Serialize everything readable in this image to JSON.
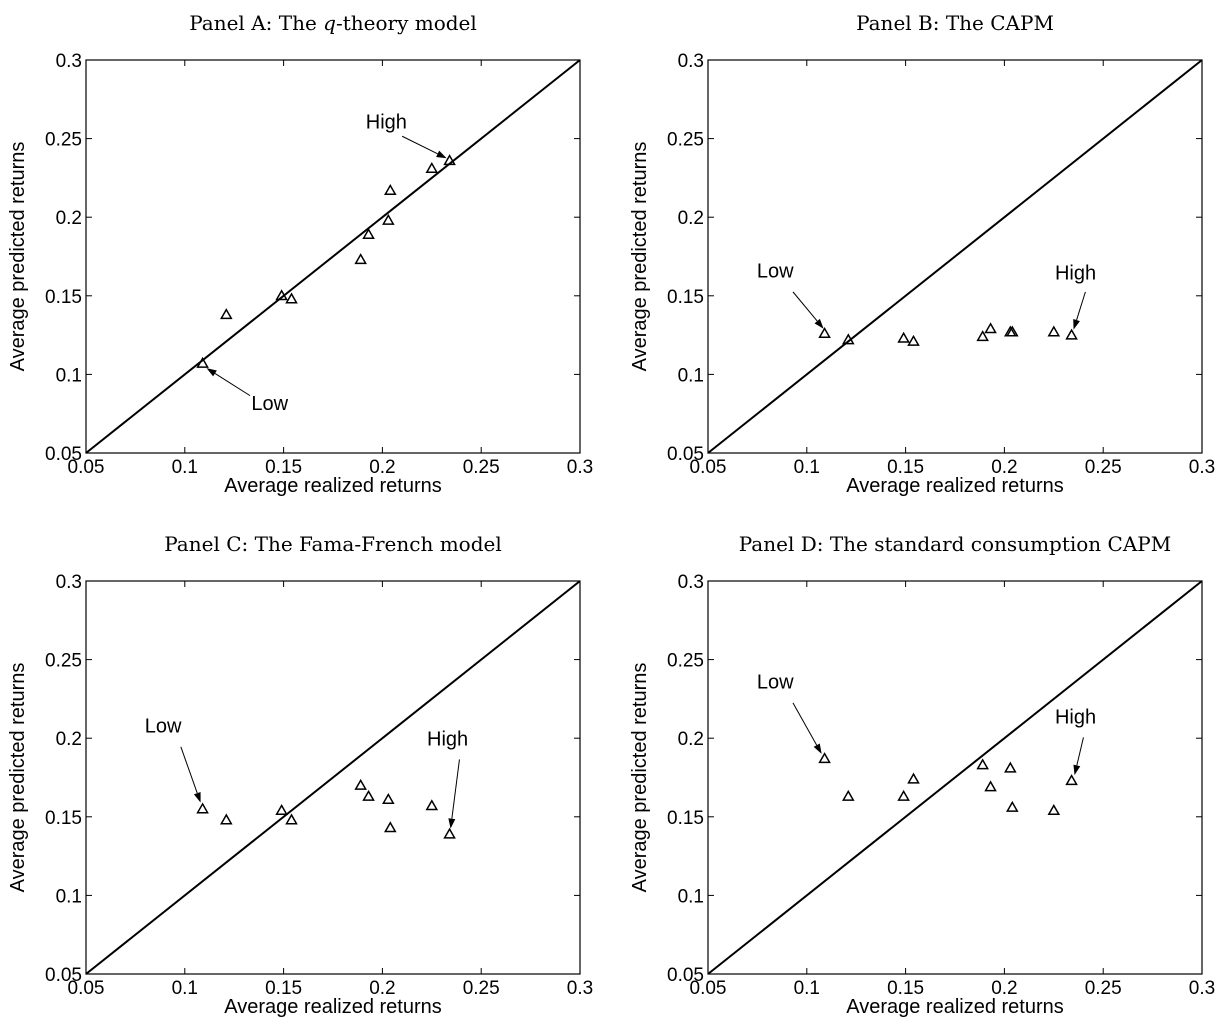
{
  "chart_data": [
    {
      "type": "scatter",
      "title_prefix": "Panel A: The ",
      "title_italic": "q",
      "title_suffix": "-theory model",
      "xlabel": "Average realized returns",
      "ylabel": "Average predicted returns",
      "xlim": [
        0.05,
        0.3
      ],
      "ylim": [
        0.05,
        0.3
      ],
      "xticks": [
        "0.05",
        "0.1",
        "0.15",
        "0.2",
        "0.25",
        "0.3"
      ],
      "yticks": [
        "0.05",
        "0.1",
        "0.15",
        "0.2",
        "0.25",
        "0.3"
      ],
      "reference_line": "45-degree",
      "marker": "triangle",
      "points": [
        {
          "x": 0.109,
          "y": 0.107
        },
        {
          "x": 0.121,
          "y": 0.138
        },
        {
          "x": 0.149,
          "y": 0.15
        },
        {
          "x": 0.154,
          "y": 0.148
        },
        {
          "x": 0.189,
          "y": 0.173
        },
        {
          "x": 0.193,
          "y": 0.189
        },
        {
          "x": 0.203,
          "y": 0.198
        },
        {
          "x": 0.204,
          "y": 0.217
        },
        {
          "x": 0.225,
          "y": 0.231
        },
        {
          "x": 0.234,
          "y": 0.236
        }
      ],
      "annotations": [
        {
          "text": "High",
          "text_x": 0.202,
          "text_y": 0.2565,
          "arrow_from": [
            0.21,
            0.2515
          ],
          "arrow_to": [
            0.2325,
            0.2375
          ]
        },
        {
          "text": "Low",
          "text_x": 0.143,
          "text_y": 0.0775,
          "arrow_from": [
            0.133,
            0.0865
          ],
          "arrow_to": [
            0.111,
            0.104
          ]
        }
      ]
    },
    {
      "type": "scatter",
      "title_prefix": "Panel B: The CAPM",
      "title_italic": "",
      "title_suffix": "",
      "xlabel": "Average realized returns",
      "ylabel": "Average predicted returns",
      "xlim": [
        0.05,
        0.3
      ],
      "ylim": [
        0.05,
        0.3
      ],
      "xticks": [
        "0.05",
        "0.1",
        "0.15",
        "0.2",
        "0.25",
        "0.3"
      ],
      "yticks": [
        "0.05",
        "0.1",
        "0.15",
        "0.2",
        "0.25",
        "0.3"
      ],
      "reference_line": "45-degree",
      "marker": "triangle",
      "points": [
        {
          "x": 0.109,
          "y": 0.126
        },
        {
          "x": 0.121,
          "y": 0.122
        },
        {
          "x": 0.149,
          "y": 0.123
        },
        {
          "x": 0.154,
          "y": 0.121
        },
        {
          "x": 0.189,
          "y": 0.124
        },
        {
          "x": 0.193,
          "y": 0.129
        },
        {
          "x": 0.203,
          "y": 0.127
        },
        {
          "x": 0.204,
          "y": 0.127
        },
        {
          "x": 0.225,
          "y": 0.127
        },
        {
          "x": 0.234,
          "y": 0.125
        }
      ],
      "annotations": [
        {
          "text": "Low",
          "text_x": 0.084,
          "text_y": 0.1615,
          "arrow_from": [
            0.093,
            0.1525
          ],
          "arrow_to": [
            0.1085,
            0.129
          ]
        },
        {
          "text": "High",
          "text_x": 0.236,
          "text_y": 0.1605,
          "arrow_from": [
            0.241,
            0.1525
          ],
          "arrow_to": [
            0.235,
            0.1285
          ]
        }
      ]
    },
    {
      "type": "scatter",
      "title_prefix": "Panel C: The Fama-French model",
      "title_italic": "",
      "title_suffix": "",
      "xlabel": "Average realized returns",
      "ylabel": "Average predicted returns",
      "xlim": [
        0.05,
        0.3
      ],
      "ylim": [
        0.05,
        0.3
      ],
      "xticks": [
        "0.05",
        "0.1",
        "0.15",
        "0.2",
        "0.25",
        "0.3"
      ],
      "yticks": [
        "0.05",
        "0.1",
        "0.15",
        "0.2",
        "0.25",
        "0.3"
      ],
      "reference_line": "45-degree",
      "marker": "triangle",
      "points": [
        {
          "x": 0.109,
          "y": 0.155
        },
        {
          "x": 0.121,
          "y": 0.148
        },
        {
          "x": 0.149,
          "y": 0.154
        },
        {
          "x": 0.154,
          "y": 0.148
        },
        {
          "x": 0.189,
          "y": 0.17
        },
        {
          "x": 0.193,
          "y": 0.163
        },
        {
          "x": 0.203,
          "y": 0.161
        },
        {
          "x": 0.204,
          "y": 0.143
        },
        {
          "x": 0.225,
          "y": 0.157
        },
        {
          "x": 0.234,
          "y": 0.139
        }
      ],
      "annotations": [
        {
          "text": "Low",
          "text_x": 0.089,
          "text_y": 0.2035,
          "arrow_from": [
            0.098,
            0.1945
          ],
          "arrow_to": [
            0.108,
            0.159
          ]
        },
        {
          "text": "High",
          "text_x": 0.233,
          "text_y": 0.1955,
          "arrow_from": [
            0.239,
            0.1865
          ],
          "arrow_to": [
            0.2345,
            0.1425
          ]
        }
      ]
    },
    {
      "type": "scatter",
      "title_prefix": "Panel D: The standard consumption CAPM",
      "title_italic": "",
      "title_suffix": "",
      "xlabel": "Average realized returns",
      "ylabel": "Average predicted returns",
      "xlim": [
        0.05,
        0.3
      ],
      "ylim": [
        0.05,
        0.3
      ],
      "xticks": [
        "0.05",
        "0.1",
        "0.15",
        "0.2",
        "0.25",
        "0.3"
      ],
      "yticks": [
        "0.05",
        "0.1",
        "0.15",
        "0.2",
        "0.25",
        "0.3"
      ],
      "reference_line": "45-degree",
      "marker": "triangle",
      "points": [
        {
          "x": 0.109,
          "y": 0.187
        },
        {
          "x": 0.121,
          "y": 0.163
        },
        {
          "x": 0.149,
          "y": 0.163
        },
        {
          "x": 0.154,
          "y": 0.174
        },
        {
          "x": 0.189,
          "y": 0.183
        },
        {
          "x": 0.193,
          "y": 0.169
        },
        {
          "x": 0.203,
          "y": 0.181
        },
        {
          "x": 0.204,
          "y": 0.156
        },
        {
          "x": 0.225,
          "y": 0.154
        },
        {
          "x": 0.234,
          "y": 0.173
        }
      ],
      "annotations": [
        {
          "text": "Low",
          "text_x": 0.084,
          "text_y": 0.2315,
          "arrow_from": [
            0.093,
            0.2225
          ],
          "arrow_to": [
            0.1075,
            0.19
          ]
        },
        {
          "text": "High",
          "text_x": 0.236,
          "text_y": 0.2095,
          "arrow_from": [
            0.24,
            0.2005
          ],
          "arrow_to": [
            0.2355,
            0.1765
          ]
        }
      ]
    }
  ]
}
